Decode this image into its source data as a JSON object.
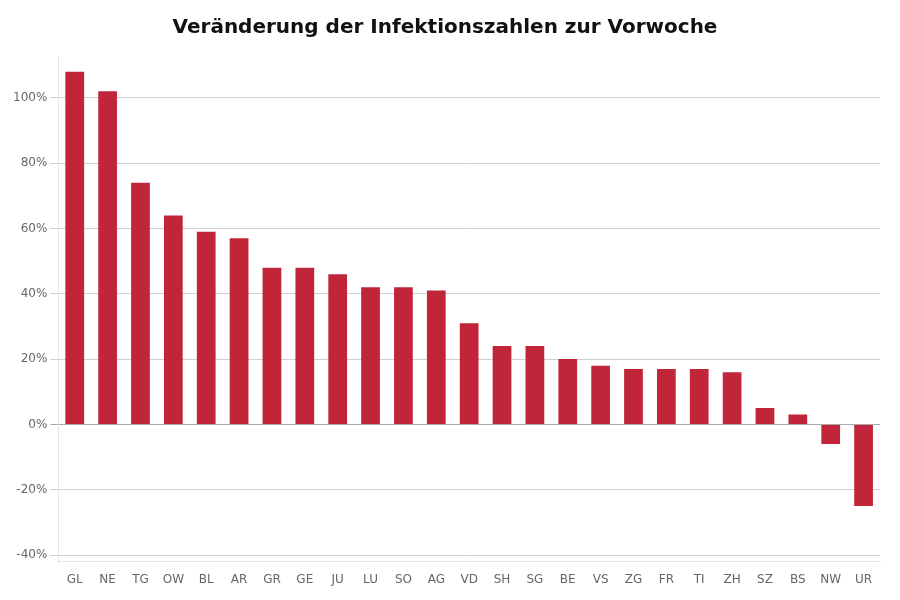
{
  "chart_data": {
    "type": "bar",
    "title": "Veränderung der Infektionszahlen zur Vorwoche",
    "categories": [
      "GL",
      "NE",
      "TG",
      "OW",
      "BL",
      "AR",
      "GR",
      "GE",
      "JU",
      "LU",
      "SO",
      "AG",
      "VD",
      "SH",
      "SG",
      "BE",
      "VS",
      "ZG",
      "FR",
      "TI",
      "ZH",
      "SZ",
      "BS",
      "NW",
      "UR"
    ],
    "values": [
      1.08,
      1.02,
      0.74,
      0.64,
      0.59,
      0.57,
      0.48,
      0.48,
      0.46,
      0.42,
      0.42,
      0.41,
      0.31,
      0.24,
      0.24,
      0.2,
      0.18,
      0.17,
      0.17,
      0.17,
      0.16,
      0.05,
      0.03,
      -0.06,
      -0.25
    ],
    "color": "#c0253a",
    "ylim": [
      -0.42,
      1.128
    ],
    "yticks": [
      {
        "value": -0.4,
        "label": "-40%"
      },
      {
        "value": -0.2,
        "label": "-20%"
      },
      {
        "value": 0.0,
        "label": "0%"
      },
      {
        "value": 0.2,
        "label": "20%"
      },
      {
        "value": 0.4,
        "label": "40%"
      },
      {
        "value": 0.6,
        "label": "60%"
      },
      {
        "value": 0.8,
        "label": "80%"
      },
      {
        "value": 1.0,
        "label": "100%"
      }
    ],
    "grid": true
  }
}
